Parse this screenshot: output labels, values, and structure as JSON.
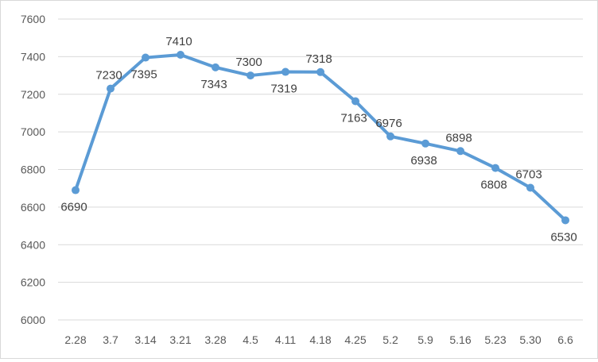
{
  "chart_data": {
    "type": "line",
    "title": "",
    "xlabel": "",
    "ylabel": "",
    "categories": [
      "2.28",
      "3.7",
      "3.14",
      "3.21",
      "3.28",
      "4.5",
      "4.11",
      "4.18",
      "4.25",
      "5.2",
      "5.9",
      "5.16",
      "5.23",
      "5.30",
      "6.6"
    ],
    "series": [
      {
        "values": [
          6690,
          7230,
          7395,
          7410,
          7343,
          7300,
          7319,
          7318,
          7163,
          6976,
          6938,
          6898,
          6808,
          6703,
          6530
        ],
        "label_position": [
          "below",
          "above",
          "below",
          "above",
          "below",
          "above",
          "below",
          "above",
          "below",
          "above",
          "below",
          "above",
          "below",
          "above",
          "below"
        ]
      }
    ],
    "ylim": [
      6000,
      7600
    ],
    "yticks": [
      6000,
      6200,
      6400,
      6600,
      6800,
      7000,
      7200,
      7400,
      7600
    ],
    "grid": true,
    "legend": "none",
    "colors": {
      "line": "#5b9bd5",
      "grid": "#d9d9d9",
      "text": "#595959"
    }
  }
}
